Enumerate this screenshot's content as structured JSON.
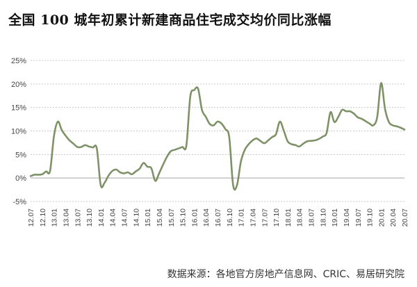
{
  "title": "全国 100 城年初累计新建商品住宅成交均价同比涨幅",
  "source": "数据来源：各地官方房地产信息网、CRIC、易居研究院",
  "colors": {
    "line": "#7f9167",
    "grid": "#c8c8c8",
    "axis": "#aaaaaa"
  },
  "chart_data": {
    "type": "line",
    "title": "全国 100 城年初累计新建商品住宅成交均价同比涨幅",
    "xlabel": "",
    "ylabel": "",
    "ylim": [
      -5,
      25
    ],
    "y_ticks": [
      "-5%",
      "0%",
      "5%",
      "10%",
      "15%",
      "20%",
      "25%"
    ],
    "x_ticks": [
      "12.07",
      "12.10",
      "13.01",
      "13.04",
      "13.07",
      "13.10",
      "14.01",
      "14.04",
      "14.07",
      "14.10",
      "15.01",
      "15.04",
      "15.07",
      "15.10",
      "16.01",
      "16.04",
      "16.07",
      "16.10",
      "17.01",
      "17.04",
      "17.07",
      "17.10",
      "18.01",
      "18.04",
      "18.07",
      "18.10",
      "19.01",
      "19.04",
      "19.07",
      "19.10",
      "20.01",
      "20.04",
      "20.07"
    ],
    "grid": true,
    "series": [
      {
        "values": [
          0.4,
          0.7,
          0.7,
          0.8,
          1.4,
          1.5,
          8.9,
          12.0,
          10.2,
          9.0,
          8.0,
          7.3,
          6.6,
          6.6,
          7.0,
          6.7,
          6.5,
          6.3,
          -1.5,
          -1.0,
          0.5,
          1.5,
          1.8,
          1.2,
          1.0,
          1.2,
          0.8,
          1.4,
          2.0,
          3.2,
          2.4,
          2.1,
          -0.6,
          1.0,
          2.8,
          4.5,
          5.7,
          6.0,
          6.3,
          6.6,
          6.9,
          17.3,
          18.7,
          19.0,
          14.5,
          13.0,
          11.5,
          11.2,
          12.0,
          11.6,
          10.4,
          8.7,
          -1.5,
          -1.5,
          3.5,
          6.0,
          7.2,
          8.0,
          8.4,
          7.9,
          7.4,
          8.0,
          8.7,
          9.3,
          12.0,
          10.1,
          7.8,
          7.2,
          7.0,
          6.7,
          7.3,
          7.8,
          7.9,
          8.0,
          8.3,
          8.8,
          9.6,
          14.0,
          11.9,
          13.0,
          14.5,
          14.2,
          14.2,
          13.7,
          12.9,
          12.6,
          12.1,
          11.6,
          11.2,
          13.0,
          20.2,
          14.7,
          11.9,
          11.2,
          11.0,
          10.7,
          10.3
        ]
      }
    ]
  }
}
